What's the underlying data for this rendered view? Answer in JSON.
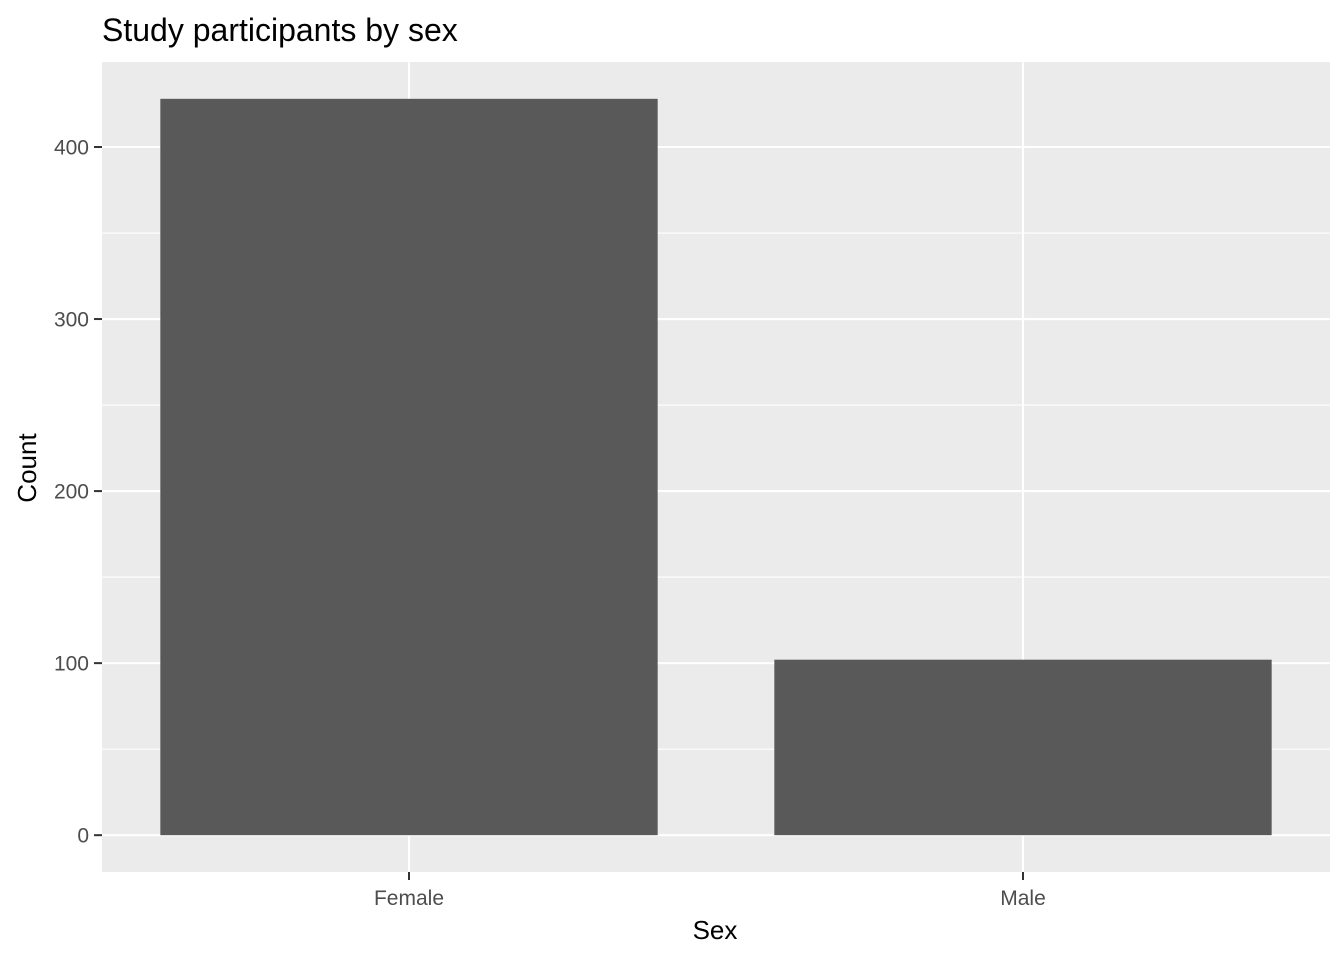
{
  "chart_data": {
    "type": "bar",
    "title": "Study participants by sex",
    "xlabel": "Sex",
    "ylabel": "Count",
    "categories": [
      "Female",
      "Male"
    ],
    "values": [
      428,
      102
    ],
    "ylim": [
      -21.4,
      449.4
    ],
    "yticks": [
      0,
      100,
      200,
      300,
      400
    ],
    "grid": true,
    "colors": {
      "panel": "#EBEBEB",
      "grid": "#FFFFFF",
      "bar": "#595959",
      "tick_text": "#4D4D4D",
      "axis_tick": "#333333"
    }
  }
}
